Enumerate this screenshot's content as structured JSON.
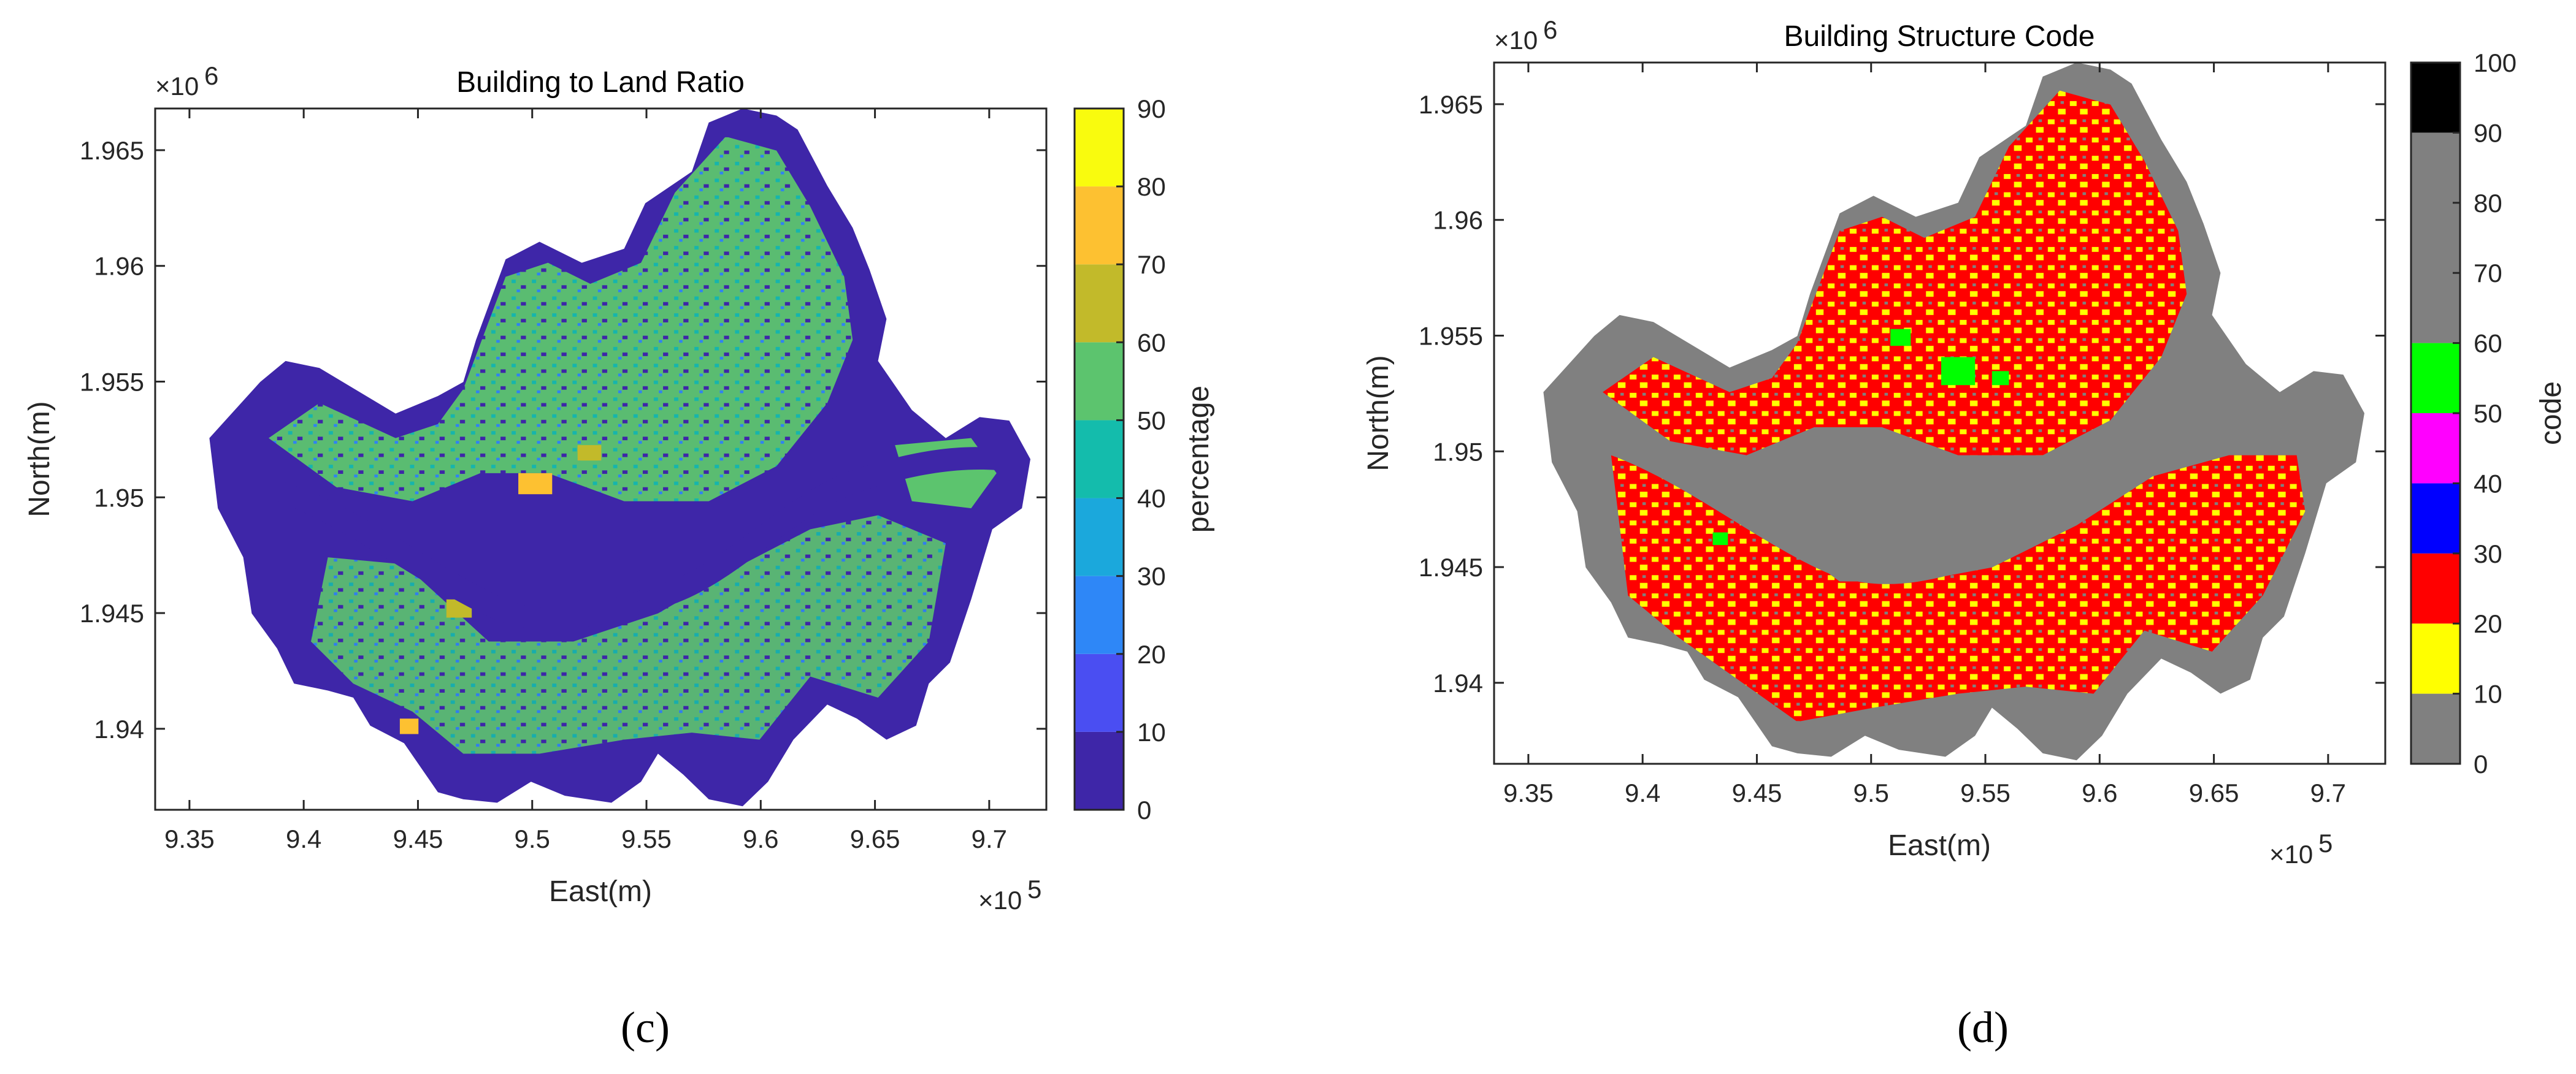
{
  "chart_data": [
    {
      "type": "heatmap",
      "panel": "(c)",
      "title": "Building to Land Ratio",
      "xlabel": "East(m)",
      "ylabel": "North(m)",
      "x_exponent": "×10",
      "x_exponent_power": "5",
      "y_exponent": "×10",
      "y_exponent_power": "6",
      "xlim": [
        9.335,
        9.725
      ],
      "ylim": [
        1.9365,
        1.9668
      ],
      "x_ticks": [
        "9.35",
        "9.4",
        "9.45",
        "9.5",
        "9.55",
        "9.6",
        "9.65",
        "9.7"
      ],
      "x_tick_values": [
        9.35,
        9.4,
        9.45,
        9.5,
        9.55,
        9.6,
        9.65,
        9.7
      ],
      "y_ticks": [
        "1.94",
        "1.945",
        "1.95",
        "1.955",
        "1.96",
        "1.965"
      ],
      "y_tick_values": [
        1.94,
        1.945,
        1.95,
        1.955,
        1.96,
        1.965
      ],
      "colorbar": {
        "label": "percentage",
        "range": [
          0,
          90
        ],
        "ticks": [
          "0",
          "10",
          "20",
          "30",
          "40",
          "50",
          "60",
          "70",
          "80",
          "90"
        ],
        "tick_values": [
          0,
          10,
          20,
          30,
          40,
          50,
          60,
          70,
          80,
          90
        ],
        "bins": [
          {
            "from": 0,
            "to": 10,
            "color": "#3e26a8"
          },
          {
            "from": 10,
            "to": 20,
            "color": "#4a4ef2"
          },
          {
            "from": 20,
            "to": 30,
            "color": "#2e87f7"
          },
          {
            "from": 30,
            "to": 40,
            "color": "#1ba8dc"
          },
          {
            "from": 40,
            "to": 50,
            "color": "#14bcac"
          },
          {
            "from": 50,
            "to": 60,
            "color": "#5cc46e"
          },
          {
            "from": 60,
            "to": 70,
            "color": "#c2ba2a"
          },
          {
            "from": 70,
            "to": 80,
            "color": "#fdc131"
          },
          {
            "from": 80,
            "to": 90,
            "color": "#f9fb0e"
          }
        ]
      },
      "map_colors": {
        "background": "#3e26a8",
        "built_up": "#5cc46e",
        "medium": "#14bcac",
        "low": "#2e87f7",
        "high": "#c2ba2a",
        "very_high": "#fdc131",
        "river": "#3e26a8"
      }
    },
    {
      "type": "heatmap",
      "panel": "(d)",
      "title": "Building Structure Code",
      "xlabel": "East(m)",
      "ylabel": "North(m)",
      "x_exponent": "×10",
      "x_exponent_power": "5",
      "y_exponent": "×10",
      "y_exponent_power": "6",
      "xlim": [
        9.335,
        9.725
      ],
      "ylim": [
        1.9365,
        1.9668
      ],
      "x_ticks": [
        "9.35",
        "9.4",
        "9.45",
        "9.5",
        "9.55",
        "9.6",
        "9.65",
        "9.7"
      ],
      "x_tick_values": [
        9.35,
        9.4,
        9.45,
        9.5,
        9.55,
        9.6,
        9.65,
        9.7
      ],
      "y_ticks": [
        "1.94",
        "1.945",
        "1.95",
        "1.955",
        "1.96",
        "1.965"
      ],
      "y_tick_values": [
        1.94,
        1.945,
        1.95,
        1.955,
        1.96,
        1.965
      ],
      "colorbar": {
        "label": "code",
        "range": [
          0,
          100
        ],
        "ticks": [
          "0",
          "10",
          "20",
          "30",
          "40",
          "50",
          "60",
          "70",
          "80",
          "90",
          "100"
        ],
        "tick_values": [
          0,
          10,
          20,
          30,
          40,
          50,
          60,
          70,
          80,
          90,
          100
        ],
        "bins": [
          {
            "from": 0,
            "to": 10,
            "color": "#808080"
          },
          {
            "from": 10,
            "to": 20,
            "color": "#ffff00"
          },
          {
            "from": 20,
            "to": 30,
            "color": "#ff0000"
          },
          {
            "from": 30,
            "to": 40,
            "color": "#0000ff"
          },
          {
            "from": 40,
            "to": 50,
            "color": "#ff00ff"
          },
          {
            "from": 50,
            "to": 60,
            "color": "#00ff00"
          },
          {
            "from": 60,
            "to": 90,
            "color": "#808080"
          },
          {
            "from": 90,
            "to": 100,
            "color": "#000000"
          }
        ]
      },
      "map_colors": {
        "background": "#808080",
        "dominant": "#ff0000",
        "secondary": "#ffff00",
        "tertiary": "#00ff00",
        "river": "#808080"
      }
    }
  ],
  "captions": {
    "left": "(c)",
    "right": "(d)"
  }
}
